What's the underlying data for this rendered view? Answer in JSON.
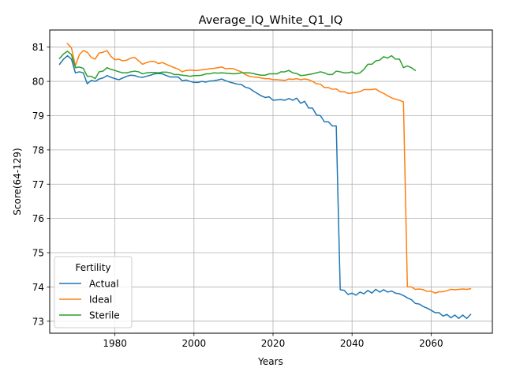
{
  "chart_data": {
    "type": "line",
    "title": "Average_IQ_White_Q1_IQ",
    "xlabel": "Years",
    "ylabel": "Score(64-129)",
    "xlim": [
      1963.5,
      2075.5
    ],
    "ylim": [
      72.65,
      81.5
    ],
    "xticks": [
      1980,
      2000,
      2020,
      2040,
      2060
    ],
    "yticks": [
      73,
      74,
      75,
      76,
      77,
      78,
      79,
      80,
      81
    ],
    "grid": true,
    "legend": {
      "title": "Fertility",
      "placement": "lower-left"
    },
    "series": [
      {
        "name": "Actual",
        "color": "#1f77b4",
        "points": [
          [
            1966,
            80.5
          ],
          [
            1967,
            80.65
          ],
          [
            1968,
            80.75
          ],
          [
            1969,
            80.65
          ],
          [
            1970,
            80.25
          ],
          [
            1971,
            80.28
          ],
          [
            1972,
            80.25
          ],
          [
            1973,
            79.93
          ],
          [
            1974,
            80.03
          ],
          [
            1975,
            80.0
          ],
          [
            1976,
            80.07
          ],
          [
            1977,
            80.1
          ],
          [
            1978,
            80.17
          ],
          [
            1979,
            80.12
          ],
          [
            1980,
            80.08
          ],
          [
            1981,
            80.05
          ],
          [
            1982,
            80.1
          ],
          [
            1983,
            80.15
          ],
          [
            1984,
            80.18
          ],
          [
            1985,
            80.17
          ],
          [
            1986,
            80.13
          ],
          [
            1987,
            80.12
          ],
          [
            1988,
            80.15
          ],
          [
            1989,
            80.18
          ],
          [
            1990,
            80.22
          ],
          [
            1991,
            80.23
          ],
          [
            1992,
            80.22
          ],
          [
            1993,
            80.17
          ],
          [
            1994,
            80.13
          ],
          [
            1995,
            80.13
          ],
          [
            1996,
            80.13
          ],
          [
            1997,
            80.02
          ],
          [
            1998,
            80.04
          ],
          [
            1999,
            80.0
          ],
          [
            2000,
            79.97
          ],
          [
            2001,
            79.97
          ],
          [
            2002,
            80.0
          ],
          [
            2003,
            79.98
          ],
          [
            2004,
            80.01
          ],
          [
            2005,
            80.02
          ],
          [
            2006,
            80.04
          ],
          [
            2007,
            80.07
          ],
          [
            2008,
            80.02
          ],
          [
            2009,
            79.98
          ],
          [
            2010,
            79.95
          ],
          [
            2011,
            79.92
          ],
          [
            2012,
            79.91
          ],
          [
            2013,
            79.83
          ],
          [
            2014,
            79.8
          ],
          [
            2015,
            79.72
          ],
          [
            2016,
            79.65
          ],
          [
            2017,
            79.58
          ],
          [
            2018,
            79.53
          ],
          [
            2019,
            79.55
          ],
          [
            2020,
            79.45
          ],
          [
            2021,
            79.46
          ],
          [
            2022,
            79.47
          ],
          [
            2023,
            79.45
          ],
          [
            2024,
            79.5
          ],
          [
            2025,
            79.45
          ],
          [
            2026,
            79.51
          ],
          [
            2027,
            79.36
          ],
          [
            2028,
            79.42
          ],
          [
            2029,
            79.22
          ],
          [
            2030,
            79.22
          ],
          [
            2031,
            79.02
          ],
          [
            2032,
            79.0
          ],
          [
            2033,
            78.82
          ],
          [
            2034,
            78.82
          ],
          [
            2035,
            78.7
          ],
          [
            2036,
            78.7
          ],
          [
            2037,
            73.92
          ],
          [
            2038,
            73.9
          ],
          [
            2039,
            73.78
          ],
          [
            2040,
            73.82
          ],
          [
            2041,
            73.76
          ],
          [
            2042,
            73.85
          ],
          [
            2043,
            73.8
          ],
          [
            2044,
            73.9
          ],
          [
            2045,
            73.82
          ],
          [
            2046,
            73.93
          ],
          [
            2047,
            73.85
          ],
          [
            2048,
            73.92
          ],
          [
            2049,
            73.85
          ],
          [
            2050,
            73.88
          ],
          [
            2051,
            73.82
          ],
          [
            2052,
            73.8
          ],
          [
            2053,
            73.75
          ],
          [
            2054,
            73.68
          ],
          [
            2055,
            73.63
          ],
          [
            2056,
            73.52
          ],
          [
            2057,
            73.5
          ],
          [
            2058,
            73.43
          ],
          [
            2059,
            73.38
          ],
          [
            2060,
            73.32
          ],
          [
            2061,
            73.25
          ],
          [
            2062,
            73.25
          ],
          [
            2063,
            73.15
          ],
          [
            2064,
            73.2
          ],
          [
            2065,
            73.1
          ],
          [
            2066,
            73.18
          ],
          [
            2067,
            73.08
          ],
          [
            2068,
            73.18
          ],
          [
            2069,
            73.08
          ],
          [
            2070,
            73.2
          ]
        ]
      },
      {
        "name": "Ideal",
        "color": "#ff7f0e",
        "points": [
          [
            1968,
            81.1
          ],
          [
            1969,
            80.98
          ],
          [
            1970,
            80.45
          ],
          [
            1971,
            80.78
          ],
          [
            1972,
            80.9
          ],
          [
            1973,
            80.85
          ],
          [
            1974,
            80.7
          ],
          [
            1975,
            80.65
          ],
          [
            1976,
            80.83
          ],
          [
            1977,
            80.85
          ],
          [
            1978,
            80.9
          ],
          [
            1979,
            80.73
          ],
          [
            1980,
            80.63
          ],
          [
            1981,
            80.65
          ],
          [
            1982,
            80.6
          ],
          [
            1983,
            80.62
          ],
          [
            1984,
            80.68
          ],
          [
            1985,
            80.7
          ],
          [
            1986,
            80.6
          ],
          [
            1987,
            80.5
          ],
          [
            1988,
            80.55
          ],
          [
            1989,
            80.58
          ],
          [
            1990,
            80.58
          ],
          [
            1991,
            80.52
          ],
          [
            1992,
            80.55
          ],
          [
            1993,
            80.5
          ],
          [
            1994,
            80.45
          ],
          [
            1995,
            80.4
          ],
          [
            1996,
            80.36
          ],
          [
            1997,
            80.28
          ],
          [
            1998,
            80.32
          ],
          [
            1999,
            80.33
          ],
          [
            2000,
            80.32
          ],
          [
            2001,
            80.32
          ],
          [
            2002,
            80.34
          ],
          [
            2003,
            80.35
          ],
          [
            2004,
            80.37
          ],
          [
            2005,
            80.38
          ],
          [
            2006,
            80.4
          ],
          [
            2007,
            80.42
          ],
          [
            2008,
            80.37
          ],
          [
            2009,
            80.38
          ],
          [
            2010,
            80.37
          ],
          [
            2011,
            80.32
          ],
          [
            2012,
            80.28
          ],
          [
            2013,
            80.2
          ],
          [
            2014,
            80.15
          ],
          [
            2015,
            80.13
          ],
          [
            2016,
            80.12
          ],
          [
            2017,
            80.1
          ],
          [
            2018,
            80.08
          ],
          [
            2019,
            80.08
          ],
          [
            2020,
            80.05
          ],
          [
            2021,
            80.05
          ],
          [
            2022,
            80.04
          ],
          [
            2023,
            80.03
          ],
          [
            2024,
            80.07
          ],
          [
            2025,
            80.06
          ],
          [
            2026,
            80.08
          ],
          [
            2027,
            80.05
          ],
          [
            2028,
            80.07
          ],
          [
            2029,
            80.05
          ],
          [
            2030,
            80.0
          ],
          [
            2031,
            79.93
          ],
          [
            2032,
            79.92
          ],
          [
            2033,
            79.82
          ],
          [
            2034,
            79.82
          ],
          [
            2035,
            79.77
          ],
          [
            2036,
            79.78
          ],
          [
            2037,
            79.7
          ],
          [
            2038,
            79.7
          ],
          [
            2039,
            79.65
          ],
          [
            2040,
            79.66
          ],
          [
            2041,
            79.68
          ],
          [
            2042,
            79.7
          ],
          [
            2043,
            79.76
          ],
          [
            2044,
            79.76
          ],
          [
            2045,
            79.76
          ],
          [
            2046,
            79.78
          ],
          [
            2047,
            79.7
          ],
          [
            2048,
            79.65
          ],
          [
            2049,
            79.58
          ],
          [
            2050,
            79.52
          ],
          [
            2051,
            79.48
          ],
          [
            2052,
            79.45
          ],
          [
            2053,
            79.4
          ],
          [
            2054,
            74.0
          ],
          [
            2055,
            74.0
          ],
          [
            2056,
            73.93
          ],
          [
            2057,
            73.94
          ],
          [
            2058,
            73.92
          ],
          [
            2059,
            73.87
          ],
          [
            2060,
            73.88
          ],
          [
            2061,
            73.82
          ],
          [
            2062,
            73.86
          ],
          [
            2063,
            73.86
          ],
          [
            2064,
            73.89
          ],
          [
            2065,
            73.93
          ],
          [
            2066,
            73.92
          ],
          [
            2067,
            73.93
          ],
          [
            2068,
            73.94
          ],
          [
            2069,
            73.93
          ],
          [
            2070,
            73.95
          ]
        ]
      },
      {
        "name": "Sterile",
        "color": "#2ca02c",
        "points": [
          [
            1966,
            80.67
          ],
          [
            1967,
            80.8
          ],
          [
            1968,
            80.88
          ],
          [
            1969,
            80.78
          ],
          [
            1970,
            80.4
          ],
          [
            1971,
            80.42
          ],
          [
            1972,
            80.38
          ],
          [
            1973,
            80.15
          ],
          [
            1974,
            80.15
          ],
          [
            1975,
            80.08
          ],
          [
            1976,
            80.28
          ],
          [
            1977,
            80.3
          ],
          [
            1978,
            80.4
          ],
          [
            1979,
            80.35
          ],
          [
            1980,
            80.32
          ],
          [
            1981,
            80.28
          ],
          [
            1982,
            80.25
          ],
          [
            1983,
            80.25
          ],
          [
            1984,
            80.28
          ],
          [
            1985,
            80.3
          ],
          [
            1986,
            80.28
          ],
          [
            1987,
            80.22
          ],
          [
            1988,
            80.25
          ],
          [
            1989,
            80.26
          ],
          [
            1990,
            80.26
          ],
          [
            1991,
            80.25
          ],
          [
            1992,
            80.27
          ],
          [
            1993,
            80.27
          ],
          [
            1994,
            80.25
          ],
          [
            1995,
            80.2
          ],
          [
            1996,
            80.2
          ],
          [
            1997,
            80.18
          ],
          [
            1998,
            80.17
          ],
          [
            1999,
            80.15
          ],
          [
            2000,
            80.17
          ],
          [
            2001,
            80.17
          ],
          [
            2002,
            80.18
          ],
          [
            2003,
            80.22
          ],
          [
            2004,
            80.22
          ],
          [
            2005,
            80.25
          ],
          [
            2006,
            80.24
          ],
          [
            2007,
            80.25
          ],
          [
            2008,
            80.24
          ],
          [
            2009,
            80.23
          ],
          [
            2010,
            80.22
          ],
          [
            2011,
            80.23
          ],
          [
            2012,
            80.25
          ],
          [
            2013,
            80.25
          ],
          [
            2014,
            80.25
          ],
          [
            2015,
            80.23
          ],
          [
            2016,
            80.2
          ],
          [
            2017,
            80.18
          ],
          [
            2018,
            80.18
          ],
          [
            2019,
            80.22
          ],
          [
            2020,
            80.22
          ],
          [
            2021,
            80.22
          ],
          [
            2022,
            80.28
          ],
          [
            2023,
            80.28
          ],
          [
            2024,
            80.32
          ],
          [
            2025,
            80.25
          ],
          [
            2026,
            80.23
          ],
          [
            2027,
            80.17
          ],
          [
            2028,
            80.18
          ],
          [
            2029,
            80.2
          ],
          [
            2030,
            80.22
          ],
          [
            2031,
            80.25
          ],
          [
            2032,
            80.28
          ],
          [
            2033,
            80.25
          ],
          [
            2034,
            80.2
          ],
          [
            2035,
            80.2
          ],
          [
            2036,
            80.3
          ],
          [
            2037,
            80.28
          ],
          [
            2038,
            80.25
          ],
          [
            2039,
            80.25
          ],
          [
            2040,
            80.28
          ],
          [
            2041,
            80.22
          ],
          [
            2042,
            80.25
          ],
          [
            2043,
            80.35
          ],
          [
            2044,
            80.5
          ],
          [
            2045,
            80.5
          ],
          [
            2046,
            80.6
          ],
          [
            2047,
            80.62
          ],
          [
            2048,
            80.72
          ],
          [
            2049,
            80.68
          ],
          [
            2050,
            80.75
          ],
          [
            2051,
            80.65
          ],
          [
            2052,
            80.65
          ],
          [
            2053,
            80.4
          ],
          [
            2054,
            80.45
          ],
          [
            2055,
            80.4
          ],
          [
            2056,
            80.32
          ]
        ]
      }
    ]
  }
}
